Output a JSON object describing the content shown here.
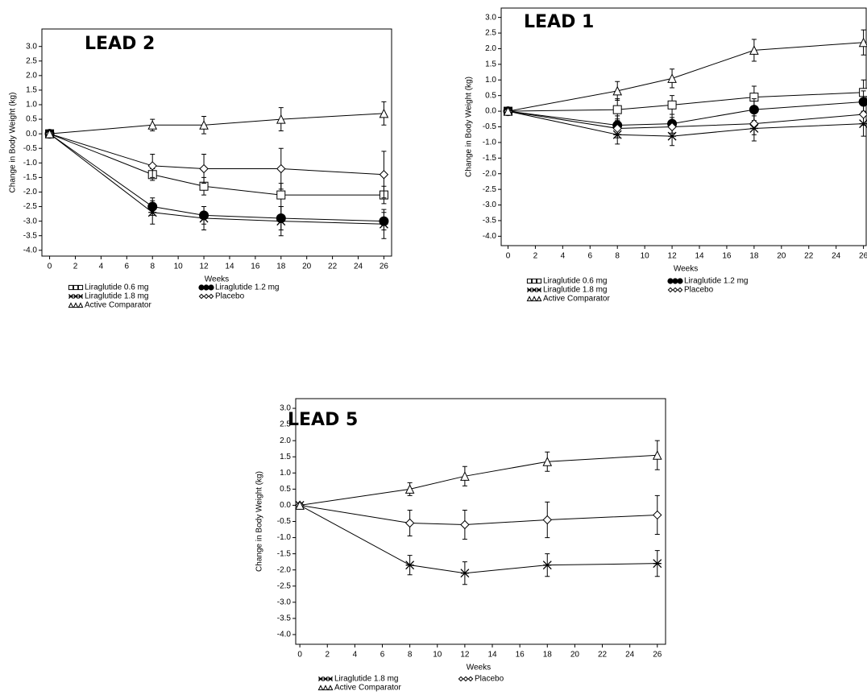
{
  "chart_data": [
    {
      "type": "line",
      "title": "LEAD 2",
      "xlabel": "Weeks",
      "ylabel": "Change in Body Weight (kg)",
      "x": [
        0,
        8,
        12,
        18,
        26
      ],
      "xlim": [
        -0.6,
        26.6
      ],
      "ylim": [
        -4.2,
        3.6
      ],
      "xticks": [
        0,
        2,
        4,
        6,
        8,
        10,
        12,
        14,
        16,
        18,
        20,
        22,
        24,
        26
      ],
      "yticks": [
        {
          "value": -4,
          "label": "-4.0"
        },
        -3.5,
        {
          "value": -3,
          "label": "-3.0"
        },
        -2.5,
        {
          "value": -2,
          "label": "-2.0"
        },
        -1.5,
        {
          "value": -1,
          "label": "-1.0"
        },
        -0.5,
        {
          "value": 0,
          "label": "0.0"
        },
        0.5,
        {
          "value": 1,
          "label": "1.0"
        },
        1.5,
        {
          "value": 2,
          "label": "2.0"
        },
        2.5,
        {
          "value": 3,
          "label": "3.0"
        }
      ],
      "grid": false,
      "series": [
        {
          "name": "Liraglutide 0.6 mg",
          "color": "#000000",
          "marker": "square",
          "values": [
            0,
            -1.4,
            -1.8,
            -2.1,
            -2.1
          ],
          "errors": [
            0,
            0.2,
            0.3,
            0.4,
            0.3
          ]
        },
        {
          "name": "Liraglutide 1.2 mg",
          "color": "#000000",
          "marker": "circle",
          "values": [
            0,
            -2.5,
            -2.8,
            -2.9,
            -3.0
          ],
          "errors": [
            0,
            0.3,
            0.3,
            0.4,
            0.3
          ]
        },
        {
          "name": "Liraglutide 1.8 mg",
          "color": "#000000",
          "marker": "star",
          "values": [
            0,
            -2.7,
            -2.9,
            -3.0,
            -3.1
          ],
          "errors": [
            0,
            0.4,
            0.4,
            0.5,
            0.5
          ]
        },
        {
          "name": "Placebo",
          "color": "#000000",
          "marker": "diamond",
          "values": [
            0,
            -1.1,
            -1.2,
            -1.2,
            -1.4
          ],
          "errors": [
            0,
            0.4,
            0.5,
            0.7,
            0.8
          ]
        },
        {
          "name": "Active Comparator",
          "color": "#000000",
          "marker": "triangle",
          "values": [
            0,
            0.3,
            0.3,
            0.5,
            0.7
          ],
          "errors": [
            0,
            0.2,
            0.3,
            0.4,
            0.4
          ]
        }
      ]
    },
    {
      "type": "line",
      "title": "LEAD 1",
      "xlabel": "Weeks",
      "ylabel": "Change in Body Weight (kg)",
      "x": [
        0,
        8,
        12,
        18,
        26
      ],
      "xlim": [
        -0.5,
        26.2
      ],
      "ylim": [
        -4.3,
        3.3
      ],
      "xticks": [
        0,
        2,
        4,
        6,
        8,
        10,
        12,
        14,
        16,
        18,
        20,
        22,
        24,
        26
      ],
      "yticks": [
        {
          "value": -4,
          "label": "-4.0"
        },
        -3.5,
        {
          "value": -3,
          "label": "-3.0"
        },
        -2.5,
        {
          "value": -2,
          "label": "-2.0"
        },
        -1.5,
        {
          "value": -1,
          "label": "-1.0"
        },
        -0.5,
        {
          "value": 0,
          "label": "0.0"
        },
        0.5,
        {
          "value": 1,
          "label": "1.0"
        },
        1.5,
        {
          "value": 2,
          "label": "2.0"
        },
        2.5,
        {
          "value": 3,
          "label": "3.0"
        }
      ],
      "grid": false,
      "series": [
        {
          "name": "Liraglutide 0.6 mg",
          "color": "#000000",
          "marker": "square",
          "values": [
            0,
            0.05,
            0.2,
            0.45,
            0.6
          ],
          "errors": [
            0,
            0.35,
            0.3,
            0.35,
            0.4
          ]
        },
        {
          "name": "Liraglutide 1.2 mg",
          "color": "#000000",
          "marker": "circle",
          "values": [
            0,
            -0.45,
            -0.4,
            0.05,
            0.3
          ],
          "errors": [
            0,
            0.3,
            0.3,
            0.35,
            0.35
          ]
        },
        {
          "name": "Liraglutide 1.8 mg",
          "color": "#000000",
          "marker": "star",
          "values": [
            0,
            -0.75,
            -0.8,
            -0.55,
            -0.4
          ],
          "errors": [
            0,
            0.3,
            0.3,
            0.4,
            0.4
          ]
        },
        {
          "name": "Placebo",
          "color": "#000000",
          "marker": "diamond",
          "values": [
            0,
            -0.55,
            -0.5,
            -0.4,
            -0.1
          ],
          "errors": [
            0,
            0.3,
            0.3,
            0.35,
            0.35
          ]
        },
        {
          "name": "Active Comparator",
          "color": "#000000",
          "marker": "triangle",
          "values": [
            0,
            0.65,
            1.05,
            1.95,
            2.2
          ],
          "errors": [
            0,
            0.3,
            0.3,
            0.35,
            0.4
          ]
        }
      ]
    },
    {
      "type": "line",
      "title": "LEAD 5",
      "xlabel": "Weeks",
      "ylabel": "Change in Body Weight (kg)",
      "x": [
        0,
        8,
        12,
        18,
        26
      ],
      "xlim": [
        -0.3,
        26.6
      ],
      "ylim": [
        -4.3,
        3.3
      ],
      "xticks": [
        0,
        2,
        4,
        6,
        8,
        10,
        12,
        14,
        16,
        18,
        20,
        22,
        24,
        26
      ],
      "yticks": [
        {
          "value": -4,
          "label": "-4.0"
        },
        -3.5,
        {
          "value": -3,
          "label": "-3.0"
        },
        -2.5,
        {
          "value": -2,
          "label": "-2.0"
        },
        -1.5,
        {
          "value": -1,
          "label": "-1.0"
        },
        -0.5,
        {
          "value": 0,
          "label": "0.0"
        },
        0.5,
        {
          "value": 1,
          "label": "1.0"
        },
        1.5,
        {
          "value": 2,
          "label": "2.0"
        },
        2.5,
        {
          "value": 3,
          "label": "3.0"
        }
      ],
      "grid": false,
      "series": [
        {
          "name": "Liraglutide 1.8 mg",
          "color": "#000000",
          "marker": "star",
          "values": [
            0,
            -1.85,
            -2.1,
            -1.85,
            -1.8
          ],
          "errors": [
            0,
            0.3,
            0.35,
            0.35,
            0.4
          ]
        },
        {
          "name": "Placebo",
          "color": "#000000",
          "marker": "diamond",
          "values": [
            0,
            -0.55,
            -0.6,
            -0.45,
            -0.3
          ],
          "errors": [
            0,
            0.4,
            0.45,
            0.55,
            0.6
          ]
        },
        {
          "name": "Active Comparator",
          "color": "#000000",
          "marker": "triangle",
          "values": [
            0,
            0.5,
            0.9,
            1.35,
            1.55
          ],
          "errors": [
            0,
            0.2,
            0.3,
            0.3,
            0.45
          ]
        }
      ]
    }
  ]
}
